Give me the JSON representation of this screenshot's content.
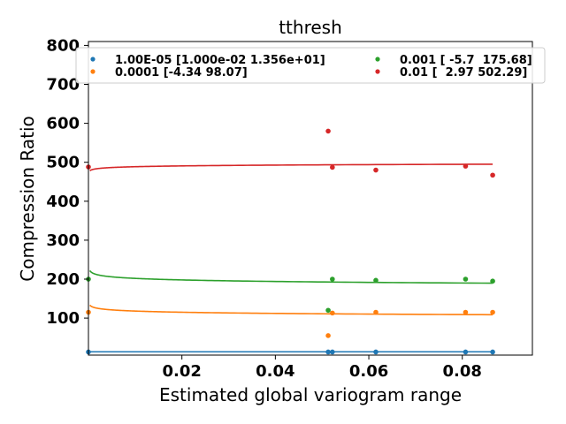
{
  "chart_data": {
    "type": "scatter",
    "title": "tthresh",
    "xlabel": "Estimated global variogram range",
    "ylabel": "Compression Ratio",
    "xlim": [
      0.0,
      0.095
    ],
    "ylim": [
      5,
      810
    ],
    "xticks": [
      0.02,
      0.04,
      0.06,
      0.08
    ],
    "xtick_labels": [
      "0.02",
      "0.04",
      "0.06",
      "0.08"
    ],
    "yticks": [
      100,
      200,
      300,
      400,
      500,
      600,
      700,
      800
    ],
    "ytick_labels": [
      "100",
      "200",
      "300",
      "400",
      "500",
      "600",
      "700",
      "800"
    ],
    "grid": false,
    "legend_position": "top",
    "series": [
      {
        "name": "1.00E-05 [1.000e-02 1.356e+01]",
        "color": "#1f77b4",
        "points": [
          [
            0.0,
            13
          ],
          [
            0.0513,
            13
          ],
          [
            0.0522,
            13
          ],
          [
            0.0615,
            13
          ],
          [
            0.0807,
            13
          ],
          [
            0.0865,
            13
          ]
        ],
        "fit_coef": [
          0.01,
          13.56
        ]
      },
      {
        "name": "0.0001 [-4.34 98.07]",
        "color": "#ff7f0e",
        "points": [
          [
            0.0,
            115
          ],
          [
            0.0513,
            55
          ],
          [
            0.0522,
            113
          ],
          [
            0.0615,
            115
          ],
          [
            0.0807,
            115
          ],
          [
            0.0865,
            115
          ]
        ],
        "fit_coef": [
          -4.34,
          98.07
        ]
      },
      {
        "name": "0.001 [ -5.7  175.68]",
        "color": "#2ca02c",
        "points": [
          [
            0.0,
            200
          ],
          [
            0.0513,
            120
          ],
          [
            0.0522,
            200
          ],
          [
            0.0615,
            197
          ],
          [
            0.0807,
            200
          ],
          [
            0.0865,
            195
          ]
        ],
        "fit_coef": [
          -5.7,
          175.68
        ]
      },
      {
        "name": "0.01 [  2.97 502.29]",
        "color": "#d62728",
        "points": [
          [
            0.0,
            488
          ],
          [
            0.0513,
            580
          ],
          [
            0.0522,
            487
          ],
          [
            0.0615,
            480
          ],
          [
            0.0807,
            490
          ],
          [
            0.0865,
            467
          ]
        ],
        "fit_coef": [
          2.97,
          502.29
        ]
      }
    ]
  }
}
